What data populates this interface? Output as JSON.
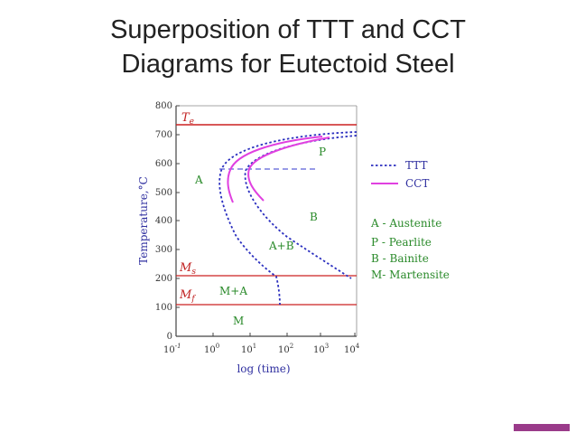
{
  "slide": {
    "title_line1": "Superposition of TTT and CCT",
    "title_line2": "Diagrams for Eutectoid Steel"
  },
  "axes": {
    "ylabel": "Temperature,°C",
    "xlabel": "log (time)",
    "y_ticks": [
      "800",
      "700",
      "600",
      "500",
      "400",
      "300",
      "200",
      "100",
      "0"
    ],
    "x_ticks": [
      {
        "base": "10",
        "exp": "-1"
      },
      {
        "base": "10",
        "exp": "0"
      },
      {
        "base": "10",
        "exp": "1"
      },
      {
        "base": "10",
        "exp": "2"
      },
      {
        "base": "10",
        "exp": "3"
      },
      {
        "base": "10",
        "exp": "4"
      }
    ]
  },
  "lines": {
    "te": {
      "sym": "T",
      "sub": "e",
      "value": 727
    },
    "ms": {
      "sym": "M",
      "sub": "s",
      "value": 215
    },
    "mf": {
      "sym": "M",
      "sub": "f",
      "value": 120
    }
  },
  "regions": {
    "A": "A",
    "P": "P",
    "B": "B",
    "AB": "A+B",
    "MA": "M+A",
    "M": "M"
  },
  "legend": {
    "ttt": "TTT",
    "cct": "CCT",
    "key": [
      "A - Austenite",
      "P - Pearlite",
      "B - Bainite",
      "M- Martensite"
    ]
  },
  "colors": {
    "ttt": "#2b2fbf",
    "cct": "#e040e0",
    "line": "#cc2020",
    "label_red": "#c02020",
    "region_text": "#2a8a2a",
    "axis_text": "#3030a0",
    "axis": "#444444",
    "accent": "#9a3b8a"
  }
}
